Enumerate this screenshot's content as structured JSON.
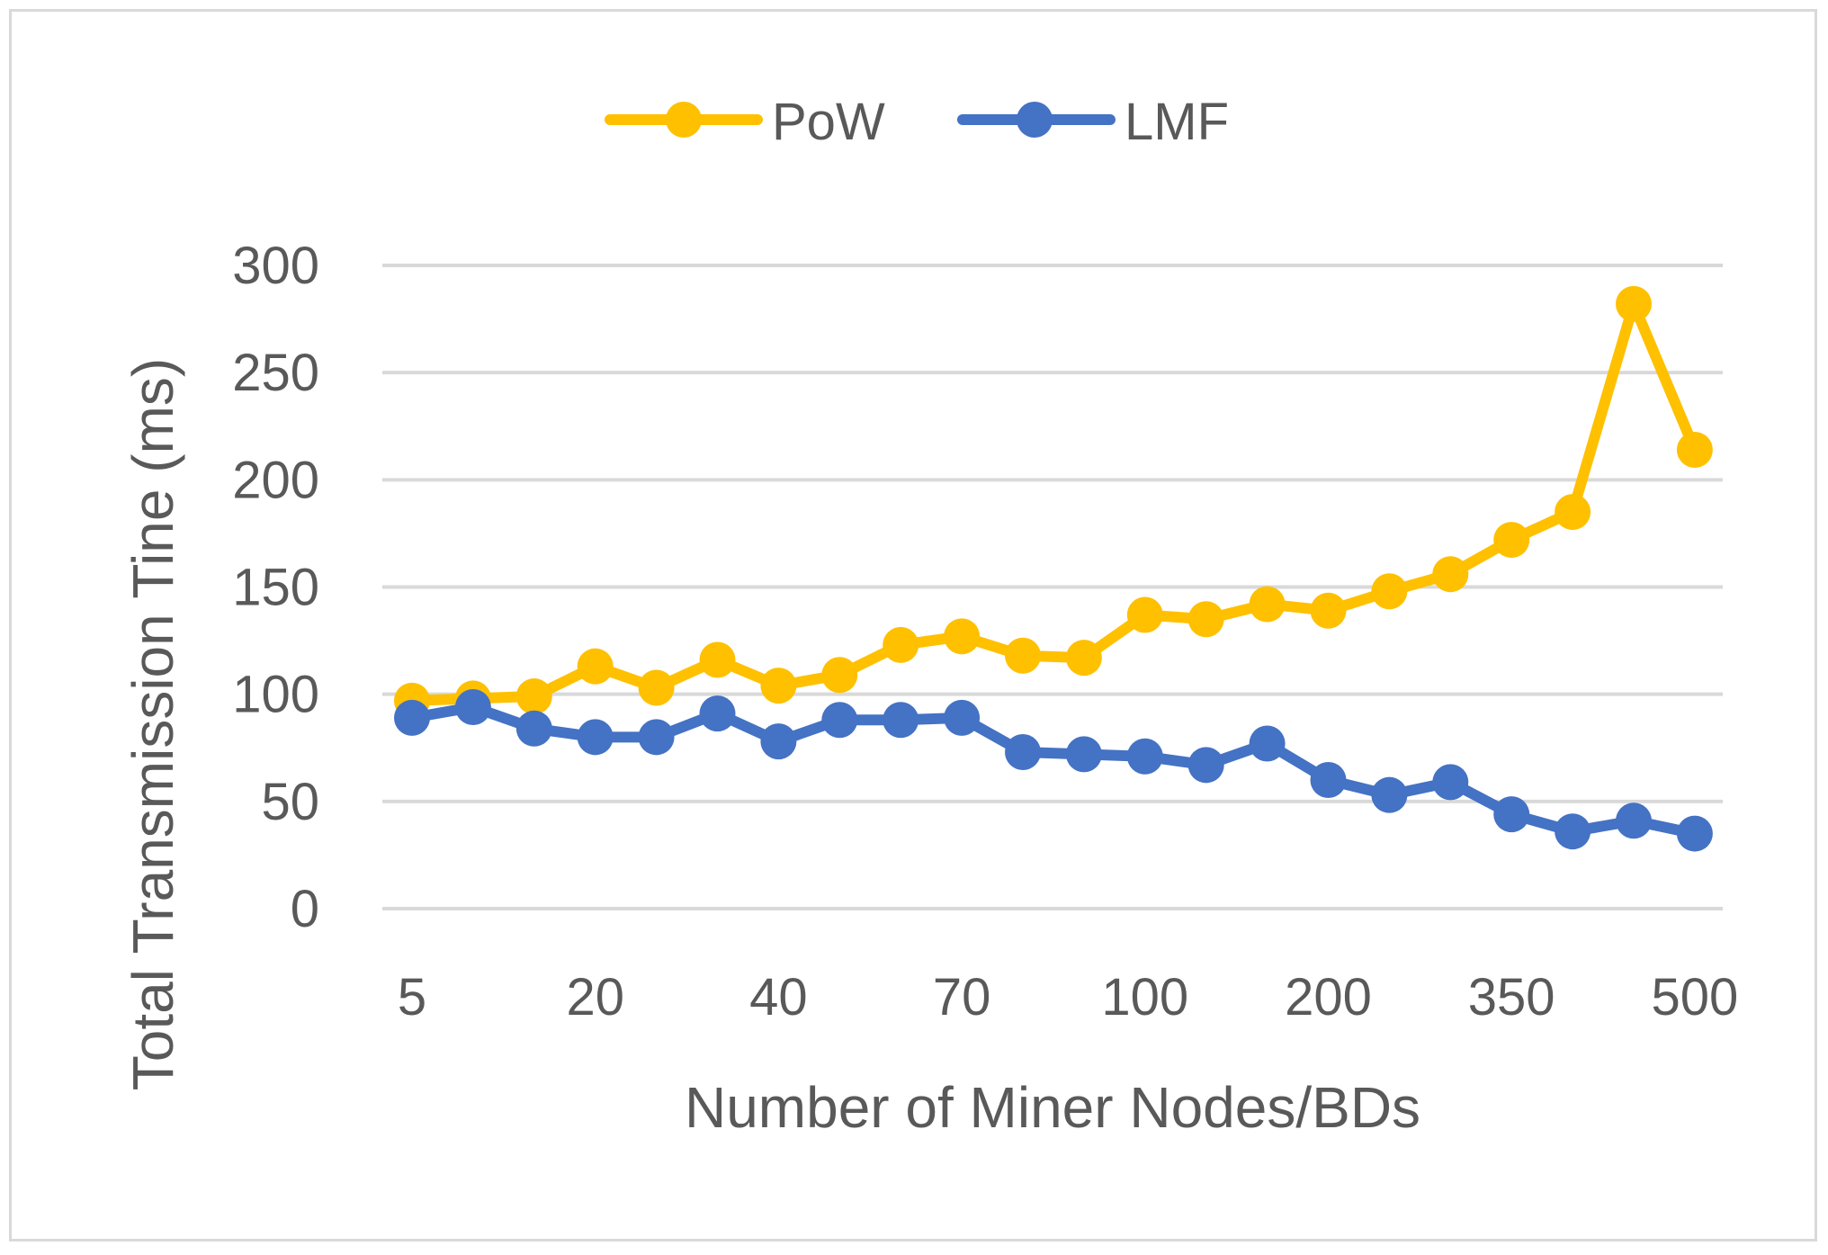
{
  "chart_data": {
    "type": "line",
    "title": "",
    "xlabel": "Number of Miner Nodes/BDs",
    "ylabel": "Total Transmission Tine (ms)",
    "ylim": [
      0,
      300
    ],
    "yticks": [
      "0",
      "50",
      "100",
      "150",
      "200",
      "250",
      "300"
    ],
    "yticks_values": [
      0,
      50,
      100,
      150,
      200,
      250,
      300
    ],
    "x_tick_labels": [
      "5",
      "20",
      "40",
      "70",
      "100",
      "200",
      "350",
      "500"
    ],
    "x_tick_positions": [
      0,
      3,
      6,
      9,
      12,
      15,
      18,
      21
    ],
    "num_points": 22,
    "grid": "horizontal",
    "legend_position": "top",
    "series": [
      {
        "name": "PoW",
        "color": "#ffc000",
        "values": [
          97,
          98,
          99,
          113,
          103,
          116,
          104,
          109,
          123,
          127,
          118,
          117,
          137,
          135,
          142,
          139,
          148,
          156,
          172,
          185,
          282,
          214
        ]
      },
      {
        "name": "LMF",
        "color": "#4472c4",
        "values": [
          89,
          94,
          84,
          80,
          80,
          91,
          78,
          88,
          88,
          89,
          73,
          72,
          71,
          67,
          77,
          60,
          53,
          59,
          44,
          36,
          41,
          35
        ]
      }
    ]
  }
}
